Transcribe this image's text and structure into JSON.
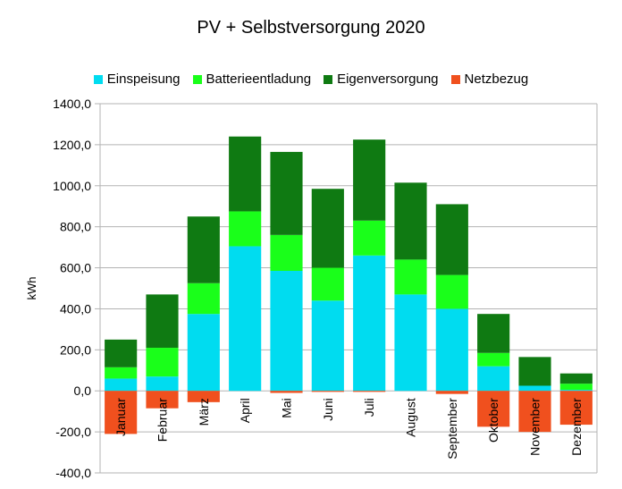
{
  "chart_data": {
    "type": "bar",
    "stacked": true,
    "title": "PV + Selbstversorgung 2020",
    "xlabel": "",
    "ylabel": "kWh",
    "ylim": [
      -400,
      1400
    ],
    "yticks": [
      "1400,0",
      "1200,0",
      "1000,0",
      "800,0",
      "600,0",
      "400,0",
      "200,0",
      "0,0",
      "-200,0",
      "-400,0"
    ],
    "ytick_values": [
      1400,
      1200,
      1000,
      800,
      600,
      400,
      200,
      0,
      -200,
      -400
    ],
    "grid": true,
    "legend_position": "top",
    "categories": [
      "Januar",
      "Februar",
      "März",
      "April",
      "Mai",
      "Juni",
      "Juli",
      "August",
      "September",
      "Oktober",
      "November",
      "Dezember"
    ],
    "series": [
      {
        "name": "Einspeisung",
        "color": "#00dcf0",
        "values": [
          60,
          70,
          375,
          705,
          585,
          440,
          660,
          470,
          400,
          120,
          25,
          5
        ]
      },
      {
        "name": "Batterieentladung",
        "color": "#1aff1a",
        "values": [
          55,
          140,
          150,
          170,
          175,
          160,
          170,
          170,
          165,
          65,
          0,
          30
        ]
      },
      {
        "name": "Eigenversorgung",
        "color": "#0f7a12",
        "values": [
          135,
          260,
          325,
          365,
          405,
          385,
          395,
          375,
          345,
          190,
          140,
          50
        ]
      },
      {
        "name": "Netzbezug",
        "color": "#f0501e",
        "values": [
          -210,
          -85,
          -55,
          0,
          -10,
          -5,
          -5,
          0,
          -15,
          -175,
          -200,
          -165
        ]
      }
    ]
  }
}
